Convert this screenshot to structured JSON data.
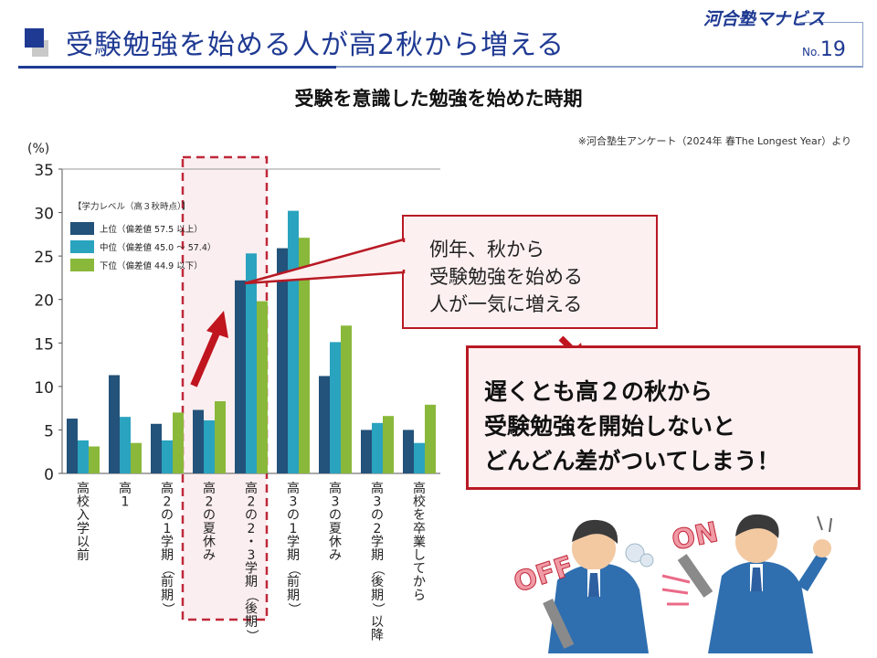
{
  "header": {
    "title": "受験勉強を始める人が高2秋から増える",
    "logo": "河合塾マナビス",
    "page_prefix": "No.",
    "page_number": "19",
    "accent_color": "#1f3a93"
  },
  "chart_heading": "受験を意識した勉強を始めた時期",
  "source_note": "※河合塾生アンケート（2024年 春The Longest Year）より",
  "chart_data": {
    "type": "bar",
    "ylabel": "(%)",
    "ylim": [
      0,
      35
    ],
    "yticks": [
      "0",
      "5",
      "10",
      "15",
      "20",
      "25",
      "30",
      "35"
    ],
    "categories": [
      "高校入学以前",
      "高1",
      "高2の1学期（前期）",
      "高2の夏休み",
      "高2の2・3学期（後期）",
      "高3の1学期（前期）",
      "高3の夏休み",
      "高3の2学期（後期）以降",
      "高校を卒業してから"
    ],
    "legend_title": "【学力レベル（高３秋時点）】",
    "series": [
      {
        "name": "上位（偏差値 57.5 以上）",
        "color": "#23527a",
        "values": [
          6.3,
          11.3,
          5.7,
          7.3,
          22.2,
          25.9,
          11.2,
          5.0,
          5.0
        ]
      },
      {
        "name": "中位（偏差値 45.0 ～ 57.4）",
        "color": "#2aa3bf",
        "values": [
          3.8,
          6.5,
          3.8,
          6.1,
          25.3,
          30.2,
          15.1,
          5.8,
          3.5
        ]
      },
      {
        "name": "下位（偏差値 44.9 以下）",
        "color": "#8ab83a",
        "values": [
          3.1,
          3.5,
          7.0,
          8.3,
          19.8,
          27.1,
          17.0,
          6.6,
          7.9
        ]
      }
    ],
    "grid": false,
    "highlight_category": "高2の2・3学期（後期）"
  },
  "callout_small": "例年、秋から\n受験勉強を始める\n人が一気に増える",
  "callout_large": "遅くとも高２の秋から\n受験勉強を開始しないと\nどんどん差がついてしまう！",
  "illustration": {
    "off_label": "OFF",
    "on_label": "ON"
  },
  "colors": {
    "highlight_border": "#c0283a",
    "highlight_fill": "#fbeef0",
    "arrow": "#c0141e"
  }
}
